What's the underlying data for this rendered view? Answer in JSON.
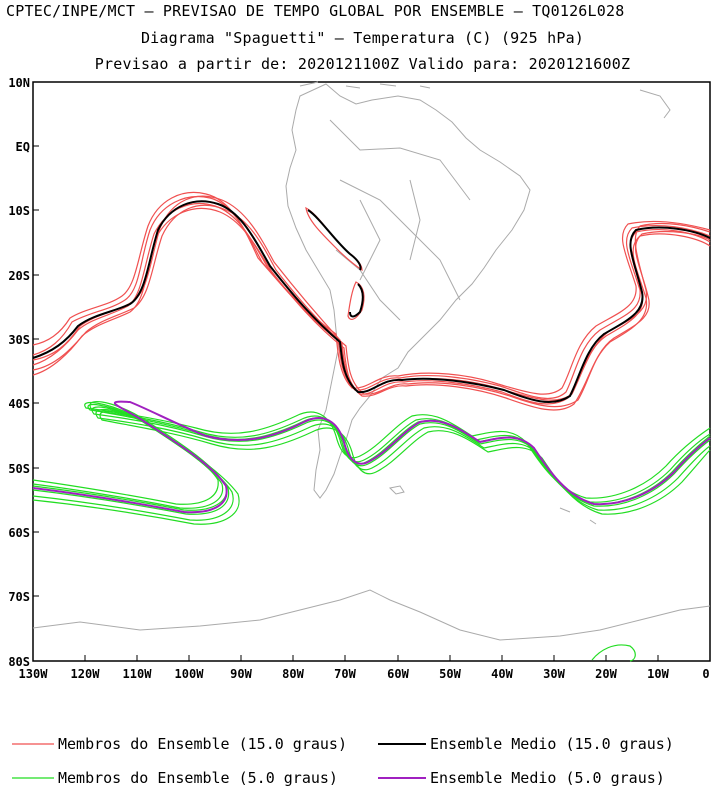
{
  "title": {
    "line1": "CPTEC/INPE/MCT — PREVISAO DE TEMPO GLOBAL POR ENSEMBLE — TQ0126L028",
    "line2": "Diagrama \"Spaguetti\" — Temperatura (C) (925 hPa)",
    "line3": "Previsao a partir de: 2020121100Z  Valido para: 2020121600Z"
  },
  "axes": {
    "lat_labels": [
      "10N",
      "EQ",
      "10S",
      "20S",
      "30S",
      "40S",
      "50S",
      "60S",
      "70S",
      "80S"
    ],
    "lon_labels": [
      "130W",
      "120W",
      "110W",
      "100W",
      "90W",
      "80W",
      "70W",
      "60W",
      "50W",
      "40W",
      "30W",
      "20W",
      "10W",
      "0"
    ]
  },
  "legend": {
    "members_15": "Membros do Ensemble (15.0 graus)",
    "mean_15": "Ensemble Medio (15.0 graus)",
    "members_5": "Membros do Ensemble (5.0 graus)",
    "mean_5": "Ensemble Medio (5.0 graus)"
  },
  "colors": {
    "members_15": "#f05050",
    "mean_15": "#000000",
    "members_5": "#22dd22",
    "mean_5": "#a020c0",
    "coast": "#aaaaaa"
  }
}
